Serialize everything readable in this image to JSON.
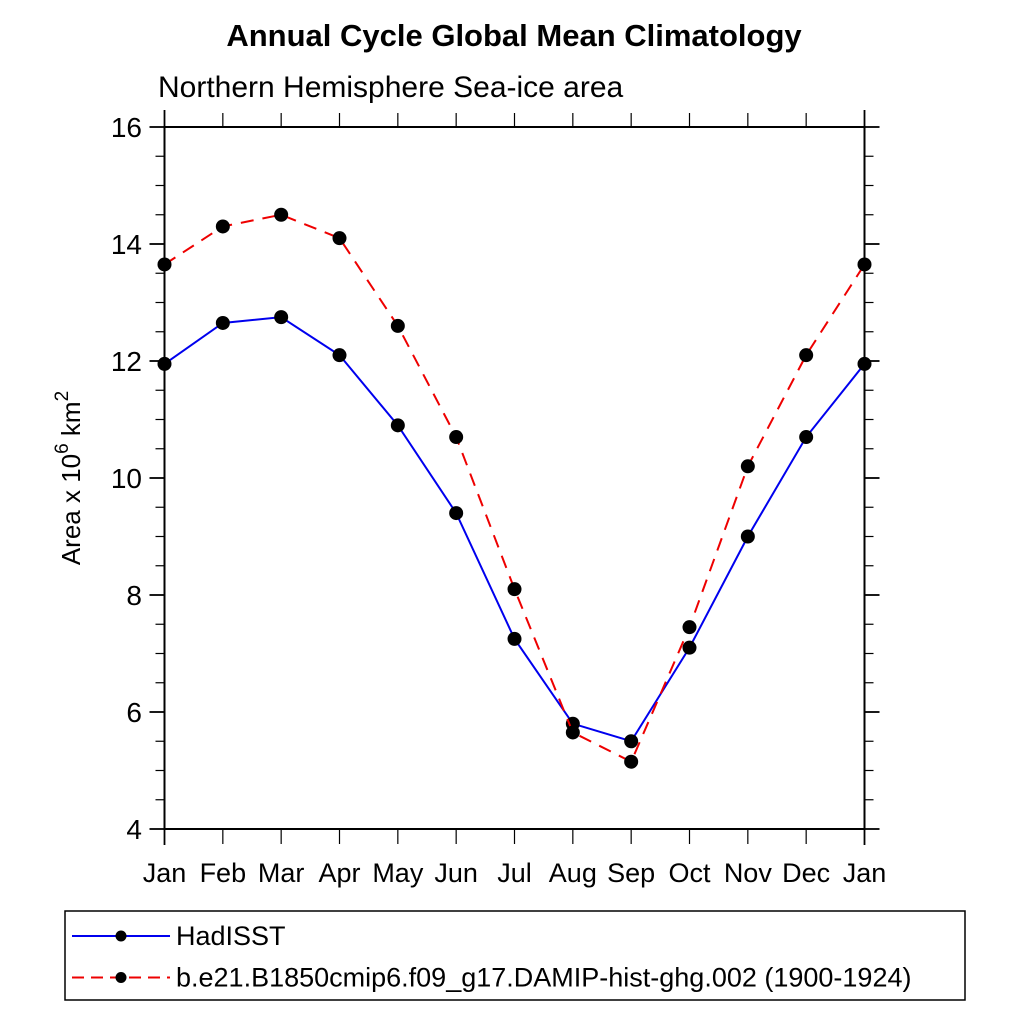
{
  "page": {
    "background": "#ffffff"
  },
  "chart_data": {
    "type": "line",
    "title": "Annual Cycle Global Mean Climatology",
    "subtitle": "Northern Hemisphere Sea-ice area",
    "ylabel_plain": "Area x 10^6 km^2",
    "ylabel_parts": [
      {
        "text": "Area x 10",
        "sup": false
      },
      {
        "text": "6",
        "sup": true
      },
      {
        "text": " km",
        "sup": false
      },
      {
        "text": "2",
        "sup": true
      }
    ],
    "categories": [
      "Jan",
      "Feb",
      "Mar",
      "Apr",
      "May",
      "Jun",
      "Jul",
      "Aug",
      "Sep",
      "Oct",
      "Nov",
      "Dec",
      "Jan"
    ],
    "y_axis": {
      "min": 4,
      "max": 16,
      "major_step": 2,
      "minor_step": 0.5,
      "major_tick_labels": [
        "4",
        "6",
        "8",
        "10",
        "12",
        "14",
        "16"
      ]
    },
    "grid": false,
    "legend_position": "bottom",
    "series": [
      {
        "name": "HadISST",
        "color": "#0000ee",
        "dash": "none",
        "marker": "filled-circle",
        "marker_color": "#000000",
        "values": [
          11.95,
          12.65,
          12.75,
          12.1,
          10.9,
          9.4,
          7.25,
          5.8,
          5.5,
          7.1,
          9.0,
          10.7,
          11.95
        ]
      },
      {
        "name": "b.e21.B1850cmip6.f09_g17.DAMIP-hist-ghg.002 (1900-1924)",
        "color": "#ee0000",
        "dash": "13 9",
        "marker": "filled-circle",
        "marker_color": "#000000",
        "values": [
          13.65,
          14.3,
          14.5,
          14.1,
          12.6,
          10.7,
          8.1,
          5.65,
          5.15,
          7.45,
          10.2,
          12.1,
          13.65
        ]
      }
    ]
  }
}
